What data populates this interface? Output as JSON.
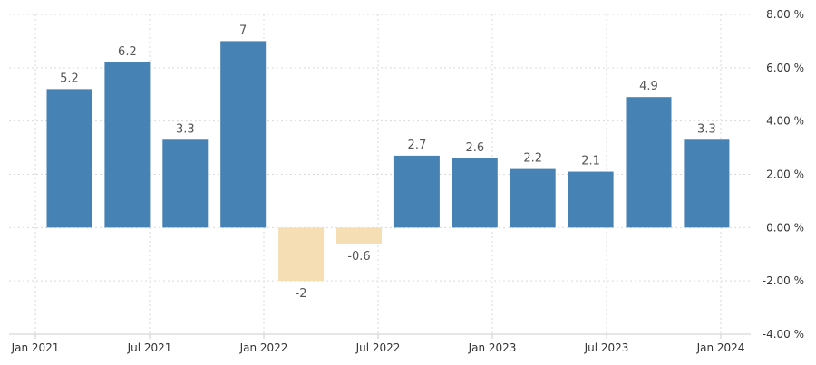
{
  "chart_data": {
    "type": "bar",
    "categories": [
      "Q1 2021",
      "Q2 2021",
      "Q3 2021",
      "Q4 2021",
      "Q1 2022",
      "Q2 2022",
      "Q3 2022",
      "Q4 2022",
      "Q1 2023",
      "Q2 2023",
      "Q3 2023",
      "Q4 2023"
    ],
    "values": [
      5.2,
      6.2,
      3.3,
      7,
      -2,
      -0.6,
      2.7,
      2.6,
      2.2,
      2.1,
      4.9,
      3.3
    ],
    "data_labels": [
      "5.2",
      "6.2",
      "3.3",
      "7",
      "-2",
      "-0.6",
      "2.7",
      "2.6",
      "2.2",
      "2.1",
      "4.9",
      "3.3"
    ],
    "title": "",
    "xlabel": "",
    "ylabel": "",
    "ylim": [
      -4,
      8
    ],
    "y_ticks": [
      8,
      6,
      4,
      2,
      0,
      -2,
      -4
    ],
    "y_tick_labels": [
      "8.00 %",
      "6.00 %",
      "4.00 %",
      "2.00 %",
      "0.00 %",
      "-2.00 %",
      "-4.00 %"
    ],
    "x_tick_labels": [
      "Jan 2021",
      "Jul 2021",
      "Jan 2022",
      "Jul 2022",
      "Jan 2023",
      "Jul 2023",
      "Jan 2024"
    ],
    "y_axis_position": "right",
    "grid": true,
    "legend": "none",
    "colors": {
      "positive": "#4682b4",
      "negative": "#f5deb3"
    }
  }
}
